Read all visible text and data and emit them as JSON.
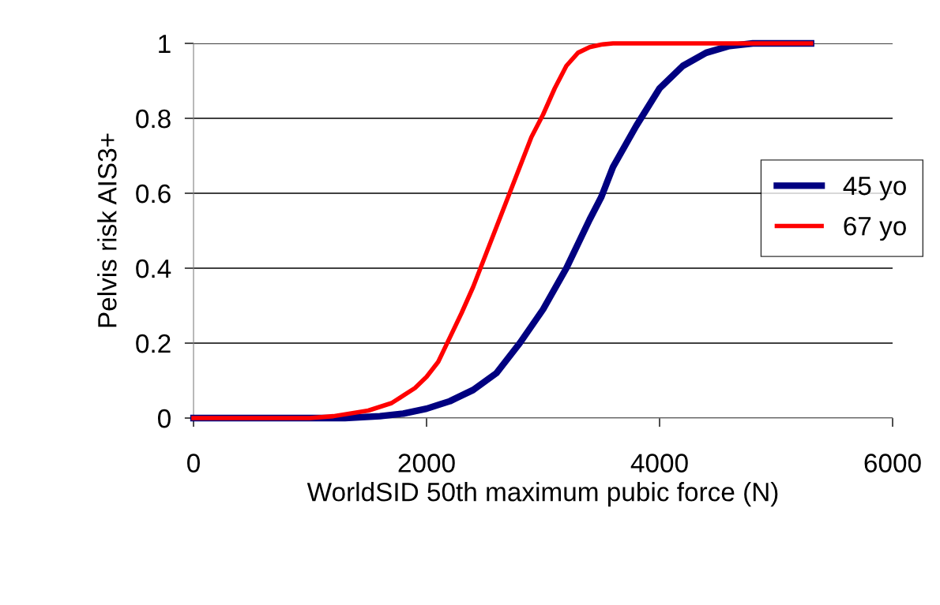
{
  "chart_data": {
    "type": "line",
    "xlabel": "WorldSID 50th maximum pubic force (N)",
    "ylabel": "Pelvis risk AIS3+",
    "xlim": [
      0,
      6000
    ],
    "xticks": [
      0,
      2000,
      4000,
      6000
    ],
    "ylim": [
      0,
      1
    ],
    "yticks": [
      0,
      0.2,
      0.4,
      0.6,
      0.8,
      1
    ],
    "grid": "y",
    "legend": "right",
    "marker": "none",
    "line_style": "solid",
    "series": [
      {
        "name": "45 yo",
        "color": "#000080",
        "x": [
          0,
          1300,
          1600,
          1800,
          2000,
          2200,
          2400,
          2600,
          2800,
          3000,
          3200,
          3400,
          3500,
          3600,
          3800,
          4000,
          4200,
          4400,
          4600,
          4800,
          5300
        ],
        "values": [
          0,
          0,
          0.005,
          0.012,
          0.025,
          0.045,
          0.075,
          0.12,
          0.2,
          0.29,
          0.4,
          0.53,
          0.59,
          0.67,
          0.78,
          0.88,
          0.94,
          0.975,
          0.993,
          1,
          1
        ]
      },
      {
        "name": "67 yo",
        "color": "#ff0000",
        "x": [
          0,
          1000,
          1200,
          1500,
          1700,
          1900,
          2000,
          2100,
          2200,
          2300,
          2400,
          2500,
          2600,
          2700,
          2800,
          2900,
          3000,
          3100,
          3200,
          3300,
          3400,
          3500,
          3600,
          5300
        ],
        "values": [
          0,
          0,
          0.005,
          0.02,
          0.04,
          0.08,
          0.11,
          0.15,
          0.215,
          0.28,
          0.35,
          0.43,
          0.51,
          0.59,
          0.67,
          0.75,
          0.81,
          0.88,
          0.94,
          0.975,
          0.99,
          0.997,
          1,
          1
        ]
      }
    ]
  }
}
